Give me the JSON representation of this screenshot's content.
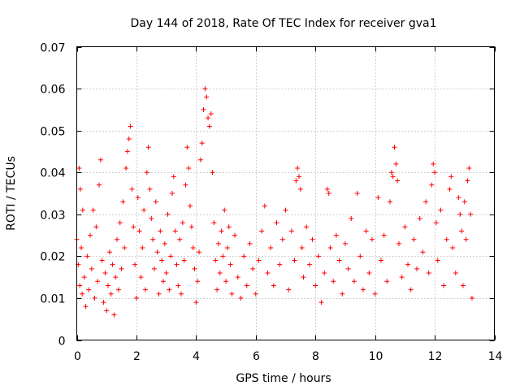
{
  "chart_data": {
    "type": "scatter",
    "title": "Day 144 of 2018, Rate Of TEC Index for receiver gva1",
    "xlabel": "GPS time / hours",
    "ylabel": "ROTI / TECUs",
    "xlim": [
      0,
      14
    ],
    "ylim": [
      0,
      0.07
    ],
    "x_ticks": [
      0,
      2,
      4,
      6,
      8,
      10,
      12,
      14
    ],
    "y_ticks": [
      0,
      0.01,
      0.02,
      0.03,
      0.04,
      0.05,
      0.06,
      0.07
    ],
    "x_tick_labels": [
      "0",
      "2",
      "4",
      "6",
      "8",
      "10",
      "12",
      "14"
    ],
    "y_tick_labels": [
      "0",
      "0.01",
      "0.02",
      "0.03",
      "0.04",
      "0.05",
      "0.06",
      "0.07"
    ],
    "grid": true,
    "marker": "+",
    "color": "#ff0000",
    "series": [
      {
        "name": "ROTI",
        "points": [
          [
            0.0,
            0.024
          ],
          [
            0.05,
            0.018
          ],
          [
            0.08,
            0.041
          ],
          [
            0.1,
            0.013
          ],
          [
            0.12,
            0.036
          ],
          [
            0.15,
            0.022
          ],
          [
            0.18,
            0.011
          ],
          [
            0.2,
            0.031
          ],
          [
            0.25,
            0.015
          ],
          [
            0.3,
            0.008
          ],
          [
            0.35,
            0.02
          ],
          [
            0.4,
            0.012
          ],
          [
            0.45,
            0.025
          ],
          [
            0.5,
            0.017
          ],
          [
            0.55,
            0.031
          ],
          [
            0.6,
            0.01
          ],
          [
            0.65,
            0.027
          ],
          [
            0.7,
            0.014
          ],
          [
            0.75,
            0.037
          ],
          [
            0.8,
            0.043
          ],
          [
            0.85,
            0.019
          ],
          [
            0.9,
            0.009
          ],
          [
            0.95,
            0.016
          ],
          [
            1.0,
            0.007
          ],
          [
            1.05,
            0.013
          ],
          [
            1.1,
            0.021
          ],
          [
            1.15,
            0.011
          ],
          [
            1.2,
            0.018
          ],
          [
            1.25,
            0.006
          ],
          [
            1.3,
            0.015
          ],
          [
            1.35,
            0.024
          ],
          [
            1.4,
            0.012
          ],
          [
            1.45,
            0.028
          ],
          [
            1.5,
            0.017
          ],
          [
            1.55,
            0.033
          ],
          [
            1.6,
            0.022
          ],
          [
            1.65,
            0.041
          ],
          [
            1.7,
            0.045
          ],
          [
            1.75,
            0.048
          ],
          [
            1.8,
            0.051
          ],
          [
            1.85,
            0.036
          ],
          [
            1.9,
            0.027
          ],
          [
            1.95,
            0.018
          ],
          [
            2.0,
            0.01
          ],
          [
            2.05,
            0.034
          ],
          [
            2.1,
            0.026
          ],
          [
            2.15,
            0.015
          ],
          [
            2.2,
            0.022
          ],
          [
            2.25,
            0.031
          ],
          [
            2.3,
            0.012
          ],
          [
            2.35,
            0.04
          ],
          [
            2.4,
            0.046
          ],
          [
            2.45,
            0.036
          ],
          [
            2.5,
            0.029
          ],
          [
            2.55,
            0.024
          ],
          [
            2.6,
            0.017
          ],
          [
            2.65,
            0.033
          ],
          [
            2.7,
            0.021
          ],
          [
            2.75,
            0.011
          ],
          [
            2.8,
            0.026
          ],
          [
            2.85,
            0.019
          ],
          [
            2.9,
            0.014
          ],
          [
            2.95,
            0.023
          ],
          [
            3.0,
            0.016
          ],
          [
            3.05,
            0.03
          ],
          [
            3.1,
            0.012
          ],
          [
            3.15,
            0.02
          ],
          [
            3.2,
            0.035
          ],
          [
            3.25,
            0.039
          ],
          [
            3.3,
            0.026
          ],
          [
            3.35,
            0.018
          ],
          [
            3.4,
            0.013
          ],
          [
            3.45,
            0.024
          ],
          [
            3.5,
            0.011
          ],
          [
            3.55,
            0.028
          ],
          [
            3.6,
            0.019
          ],
          [
            3.65,
            0.037
          ],
          [
            3.7,
            0.046
          ],
          [
            3.75,
            0.041
          ],
          [
            3.8,
            0.032
          ],
          [
            3.85,
            0.027
          ],
          [
            3.9,
            0.022
          ],
          [
            3.95,
            0.017
          ],
          [
            4.0,
            0.009
          ],
          [
            4.05,
            0.014
          ],
          [
            4.1,
            0.021
          ],
          [
            4.15,
            0.043
          ],
          [
            4.2,
            0.047
          ],
          [
            4.25,
            0.055
          ],
          [
            4.3,
            0.06
          ],
          [
            4.35,
            0.058
          ],
          [
            4.4,
            0.053
          ],
          [
            4.45,
            0.051
          ],
          [
            4.5,
            0.054
          ],
          [
            4.55,
            0.04
          ],
          [
            4.6,
            0.028
          ],
          [
            4.65,
            0.019
          ],
          [
            4.7,
            0.012
          ],
          [
            4.75,
            0.023
          ],
          [
            4.8,
            0.016
          ],
          [
            4.85,
            0.026
          ],
          [
            4.9,
            0.02
          ],
          [
            4.95,
            0.031
          ],
          [
            5.0,
            0.014
          ],
          [
            5.05,
            0.022
          ],
          [
            5.1,
            0.027
          ],
          [
            5.15,
            0.018
          ],
          [
            5.2,
            0.011
          ],
          [
            5.3,
            0.025
          ],
          [
            5.4,
            0.015
          ],
          [
            5.5,
            0.01
          ],
          [
            5.6,
            0.02
          ],
          [
            5.7,
            0.013
          ],
          [
            5.8,
            0.023
          ],
          [
            5.9,
            0.017
          ],
          [
            6.0,
            0.011
          ],
          [
            6.1,
            0.019
          ],
          [
            6.2,
            0.026
          ],
          [
            6.3,
            0.032
          ],
          [
            6.4,
            0.016
          ],
          [
            6.5,
            0.022
          ],
          [
            6.6,
            0.013
          ],
          [
            6.7,
            0.028
          ],
          [
            6.8,
            0.018
          ],
          [
            6.9,
            0.024
          ],
          [
            7.0,
            0.031
          ],
          [
            7.1,
            0.012
          ],
          [
            7.2,
            0.026
          ],
          [
            7.3,
            0.019
          ],
          [
            7.35,
            0.038
          ],
          [
            7.4,
            0.041
          ],
          [
            7.45,
            0.039
          ],
          [
            7.5,
            0.036
          ],
          [
            7.55,
            0.022
          ],
          [
            7.6,
            0.015
          ],
          [
            7.7,
            0.027
          ],
          [
            7.8,
            0.018
          ],
          [
            7.9,
            0.024
          ],
          [
            8.0,
            0.013
          ],
          [
            8.1,
            0.02
          ],
          [
            8.2,
            0.009
          ],
          [
            8.3,
            0.016
          ],
          [
            8.4,
            0.036
          ],
          [
            8.45,
            0.035
          ],
          [
            8.5,
            0.022
          ],
          [
            8.6,
            0.014
          ],
          [
            8.7,
            0.025
          ],
          [
            8.8,
            0.019
          ],
          [
            8.9,
            0.011
          ],
          [
            9.0,
            0.023
          ],
          [
            9.1,
            0.017
          ],
          [
            9.2,
            0.029
          ],
          [
            9.3,
            0.014
          ],
          [
            9.4,
            0.035
          ],
          [
            9.5,
            0.02
          ],
          [
            9.6,
            0.012
          ],
          [
            9.7,
            0.026
          ],
          [
            9.8,
            0.016
          ],
          [
            9.9,
            0.024
          ],
          [
            10.0,
            0.011
          ],
          [
            10.1,
            0.034
          ],
          [
            10.2,
            0.019
          ],
          [
            10.3,
            0.025
          ],
          [
            10.4,
            0.014
          ],
          [
            10.5,
            0.033
          ],
          [
            10.55,
            0.04
          ],
          [
            10.6,
            0.039
          ],
          [
            10.65,
            0.046
          ],
          [
            10.7,
            0.042
          ],
          [
            10.75,
            0.038
          ],
          [
            10.8,
            0.023
          ],
          [
            10.9,
            0.015
          ],
          [
            11.0,
            0.027
          ],
          [
            11.1,
            0.018
          ],
          [
            11.2,
            0.012
          ],
          [
            11.3,
            0.024
          ],
          [
            11.4,
            0.017
          ],
          [
            11.5,
            0.029
          ],
          [
            11.6,
            0.021
          ],
          [
            11.7,
            0.033
          ],
          [
            11.8,
            0.016
          ],
          [
            11.9,
            0.037
          ],
          [
            11.95,
            0.042
          ],
          [
            12.0,
            0.04
          ],
          [
            12.05,
            0.028
          ],
          [
            12.1,
            0.019
          ],
          [
            12.2,
            0.031
          ],
          [
            12.3,
            0.013
          ],
          [
            12.4,
            0.024
          ],
          [
            12.5,
            0.036
          ],
          [
            12.55,
            0.039
          ],
          [
            12.6,
            0.022
          ],
          [
            12.7,
            0.016
          ],
          [
            12.8,
            0.034
          ],
          [
            12.85,
            0.03
          ],
          [
            12.9,
            0.026
          ],
          [
            12.95,
            0.013
          ],
          [
            13.0,
            0.033
          ],
          [
            13.05,
            0.024
          ],
          [
            13.1,
            0.038
          ],
          [
            13.15,
            0.041
          ],
          [
            13.2,
            0.03
          ],
          [
            13.25,
            0.01
          ]
        ]
      }
    ]
  }
}
